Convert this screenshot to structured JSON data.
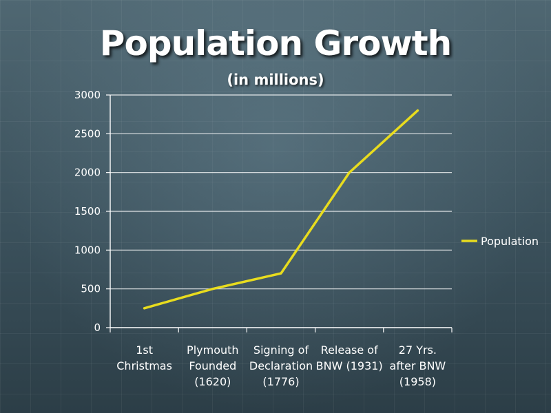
{
  "header": {
    "title": "Population Growth",
    "subtitle": "(in millions)"
  },
  "colors": {
    "series": "#e8dc1e",
    "gridline": "#ffffff",
    "text": "#ffffff"
  },
  "chart_data": {
    "type": "line",
    "title": "Population Growth",
    "subtitle": "(in millions)",
    "categories": [
      [
        "1st",
        "Christmas"
      ],
      [
        "Plymouth",
        "Founded",
        "(1620)"
      ],
      [
        "Signing of",
        "Declaration",
        "(1776)"
      ],
      [
        "Release of",
        "BNW (1931)"
      ],
      [
        "27 Yrs.",
        "after BNW",
        "(1958)"
      ]
    ],
    "series": [
      {
        "name": "Population",
        "values": [
          250,
          500,
          700,
          2000,
          2800
        ]
      }
    ],
    "ylim": [
      0,
      3000
    ],
    "yticks": [
      0,
      500,
      1000,
      1500,
      2000,
      2500,
      3000
    ],
    "grid": true,
    "legend": "right"
  }
}
